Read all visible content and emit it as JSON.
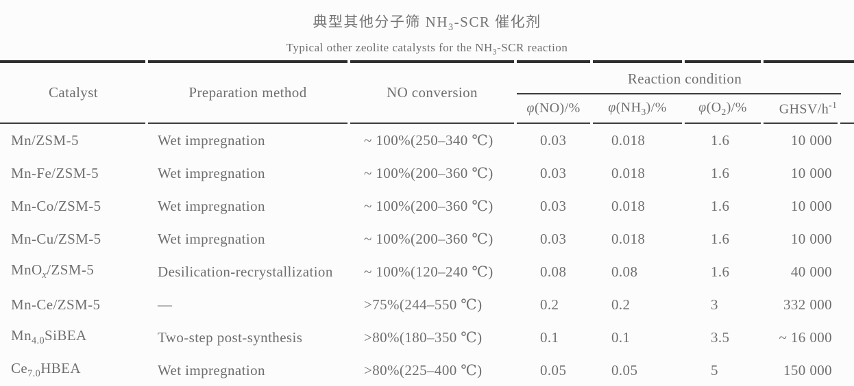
{
  "title": {
    "zh": "典型其他分子筛 NH_{3}-SCR 催化剂",
    "en": "Typical other zeolite catalysts for the NH_{3}-SCR reaction"
  },
  "table": {
    "headers": {
      "catalyst": "Catalyst",
      "preparation": "Preparation method",
      "no_conversion": "NO conversion",
      "reaction_condition": "Reaction condition",
      "phi_no": "*φ*(NO)/%",
      "phi_nh3": "*φ*(NH_{3})/%",
      "phi_o2": "*φ*(O_{2})/%",
      "ghsv": "GHSV/h^{-1}"
    },
    "rows": [
      {
        "catalyst": "Mn/ZSM-5",
        "preparation": "Wet impregnation",
        "no_conversion": "~ 100%(250–340 ℃)",
        "phi_no": "0.03",
        "phi_nh3": "0.018",
        "phi_o2": "1.6",
        "ghsv": "10 000"
      },
      {
        "catalyst": "Mn-Fe/ZSM-5",
        "preparation": "Wet impregnation",
        "no_conversion": "~ 100%(200–360 ℃)",
        "phi_no": "0.03",
        "phi_nh3": "0.018",
        "phi_o2": "1.6",
        "ghsv": "10 000"
      },
      {
        "catalyst": "Mn-Co/ZSM-5",
        "preparation": "Wet impregnation",
        "no_conversion": "~ 100%(200–360 ℃)",
        "phi_no": "0.03",
        "phi_nh3": "0.018",
        "phi_o2": "1.6",
        "ghsv": "10 000"
      },
      {
        "catalyst": "Mn-Cu/ZSM-5",
        "preparation": "Wet impregnation",
        "no_conversion": "~ 100%(200–360 ℃)",
        "phi_no": "0.03",
        "phi_nh3": "0.018",
        "phi_o2": "1.6",
        "ghsv": "10 000"
      },
      {
        "catalyst": "MnO_{*x*}/ZSM-5",
        "preparation": "Desilication-recrystallization",
        "no_conversion": "~ 100%(120–240 ℃)",
        "phi_no": "0.08",
        "phi_nh3": "0.08",
        "phi_o2": "1.6",
        "ghsv": "40 000"
      },
      {
        "catalyst": "Mn-Ce/ZSM-5",
        "preparation": "—",
        "no_conversion": ">75%(244–550 ℃)",
        "phi_no": "0.2",
        "phi_nh3": "0.2",
        "phi_o2": "3",
        "ghsv": "332 000"
      },
      {
        "catalyst": "Mn_{4.0}SiBEA",
        "preparation": "Two-step post-synthesis",
        "no_conversion": ">80%(180–350 ℃)",
        "phi_no": "0.1",
        "phi_nh3": "0.1",
        "phi_o2": "3.5",
        "ghsv": "~ 16 000"
      },
      {
        "catalyst": "Ce_{7.0}HBEA",
        "preparation": "Wet impregnation",
        "no_conversion": ">80%(225–400 ℃)",
        "phi_no": "0.05",
        "phi_nh3": "0.05",
        "phi_o2": "5",
        "ghsv": "150 000"
      }
    ]
  },
  "colors": {
    "rule_heavy": "#2e2e2e",
    "rule_light": "#3c3c3c",
    "text": "#6f6f6f",
    "background": "#fcfcfc"
  }
}
